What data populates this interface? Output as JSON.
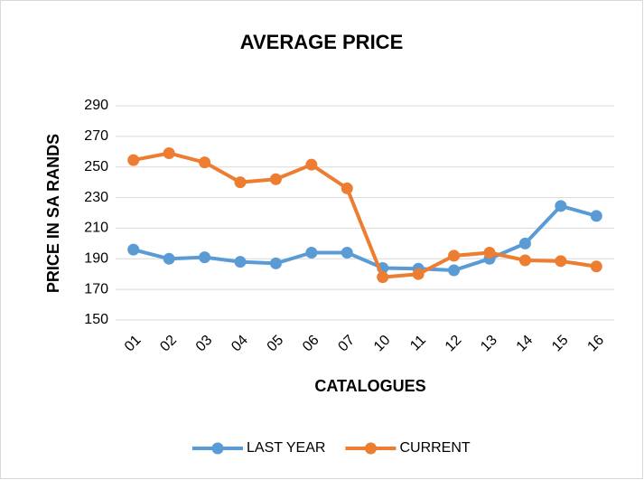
{
  "chart_data": {
    "type": "line",
    "title": "AVERAGE PRICE",
    "x_label": "CATALOGUES",
    "y_label": "PRICE IN SA RANDS",
    "categories": [
      "01",
      "02",
      "03",
      "04",
      "05",
      "06",
      "07",
      "10",
      "11",
      "12",
      "13",
      "14",
      "15",
      "16"
    ],
    "series": [
      {
        "name": "LAST YEAR",
        "color": "#5b9bd5",
        "values": [
          196,
          190,
          191,
          188,
          187,
          194,
          194,
          184,
          183.5,
          182.5,
          190,
          200,
          224.5,
          218
        ]
      },
      {
        "name": "CURRENT",
        "color": "#ed7d31",
        "values": [
          254.5,
          259,
          253,
          240,
          242,
          251.5,
          236,
          178,
          180,
          192,
          194,
          189,
          188.5,
          185
        ]
      }
    ],
    "ylim": [
      150,
      290
    ],
    "yticks": [
      150,
      170,
      190,
      210,
      230,
      250,
      270,
      290
    ],
    "grid": true,
    "legend": "bottom"
  }
}
